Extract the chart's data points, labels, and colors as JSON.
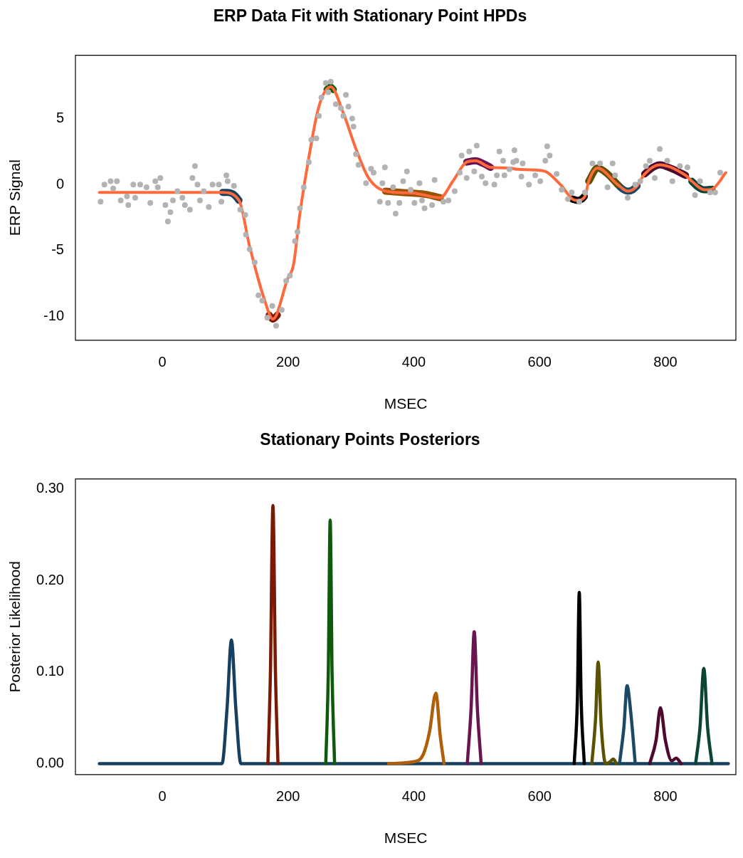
{
  "chart_data": [
    {
      "type": "line",
      "title": "ERP Data Fit with Stationary Point HPDs",
      "xlabel": "MSEC",
      "ylabel": "ERP Signal",
      "xlim": [
        -138,
        912
      ],
      "ylim": [
        -11.8,
        9.8
      ],
      "xticks": [
        0,
        200,
        400,
        600,
        800
      ],
      "yticks": [
        -10,
        -5,
        0,
        5
      ],
      "series": [
        {
          "type": "scatter",
          "marker": "circle",
          "color": "#b3b3b3",
          "x": [
            -98,
            -92,
            -82,
            -72,
            -78,
            -66,
            -56,
            -54,
            -46,
            -43,
            -35,
            -25,
            -19,
            -11,
            -3,
            -7,
            5,
            9,
            13,
            17,
            24,
            32,
            36,
            44,
            48,
            52,
            56,
            60,
            66,
            74,
            80,
            90,
            94,
            102,
            104,
            114,
            124,
            132,
            133,
            139,
            147,
            153,
            159,
            175,
            167,
            181,
            190,
            197,
            203,
            211,
            215,
            219,
            225,
            233,
            237,
            245,
            249,
            253,
            260,
            268,
            264,
            276,
            284,
            292,
            296,
            288,
            302,
            304,
            308,
            312,
            324,
            332,
            336,
            346,
            350,
            354,
            359,
            367,
            371,
            377,
            383,
            389,
            395,
            401,
            409,
            413,
            417,
            429,
            433,
            447,
            455,
            465,
            473,
            476,
            488,
            500,
            484,
            496,
            508,
            514,
            528,
            532,
            536,
            542,
            544,
            552,
            560,
            558,
            563,
            573,
            571,
            583,
            593,
            601,
            609,
            612,
            616,
            627,
            635,
            645,
            651,
            663,
            672,
            684,
            696,
            708,
            716,
            720,
            740,
            752,
            760,
            769,
            775,
            783,
            791,
            803,
            811,
            823,
            835,
            847,
            855,
            871,
            879,
            887
          ],
          "values": [
            -1.3,
            0.0,
            0.25,
            0.25,
            -0.3,
            -1.2,
            -0.9,
            -1.55,
            0.0,
            -1.0,
            0.0,
            -0.2,
            -1.4,
            0.25,
            0.5,
            -0.2,
            -1.55,
            -2.8,
            -2.1,
            -1.2,
            -0.5,
            -1.0,
            -1.55,
            -1.9,
            0.5,
            1.4,
            0.0,
            -1.2,
            -0.5,
            -1.7,
            0.0,
            0.0,
            -1.3,
            0.7,
            0.25,
            -0.1,
            -1.9,
            -2.3,
            -3.8,
            -4.9,
            -5.9,
            -8.4,
            -8.8,
            -9.2,
            -10.1,
            -10.7,
            -9.5,
            -7.3,
            -6.9,
            -4.3,
            -3.6,
            -1.8,
            -0.2,
            1.7,
            3.4,
            3.5,
            5.2,
            6.6,
            7.7,
            7.8,
            7.0,
            6.1,
            5.8,
            6.8,
            5.9,
            5.2,
            5.0,
            4.4,
            2.3,
            1.5,
            0.1,
            1.2,
            0.9,
            -1.3,
            0.1,
            1.3,
            -1.4,
            -0.2,
            -2.2,
            -1.4,
            0.25,
            1.0,
            -0.4,
            -1.4,
            0.1,
            -1.2,
            -1.8,
            -1.55,
            0.35,
            -1.3,
            -1.2,
            -0.5,
            0.9,
            2.2,
            2.5,
            2.95,
            0.5,
            1.0,
            0.6,
            0.1,
            0.0,
            0.7,
            2.5,
            1.8,
            0.7,
            1.15,
            2.6,
            1.7,
            1.8,
            1.6,
            0.6,
            0.0,
            0.7,
            0.25,
            1.8,
            2.9,
            2.2,
            0.8,
            -0.4,
            -1.1,
            -0.6,
            -1.3,
            -0.6,
            1.6,
            1.6,
            -0.2,
            1.6,
            0.7,
            -1.0,
            0.0,
            0.25,
            1.4,
            1.8,
            0.5,
            2.7,
            1.8,
            0.25,
            1.4,
            1.3,
            -0.8,
            0.25,
            -0.6,
            -0.6,
            0.9
          ]
        },
        {
          "color": "#ff6a3d",
          "x": [
            -100,
            96,
            122,
            139,
            163,
            176,
            199,
            209,
            218,
            229,
            249,
            268,
            288,
            308,
            328,
            355,
            399,
            442,
            462,
            484,
            498,
            522,
            553,
            565,
            605,
            633,
            652,
            660,
            672,
            678,
            692,
            724,
            740,
            755,
            767,
            791,
            832,
            842,
            862,
            874,
            896
          ],
          "values": [
            -0.6,
            -0.6,
            -1.2,
            -4.7,
            -8.8,
            -10.2,
            -7.2,
            -6.0,
            -2.5,
            0.9,
            5.9,
            7.4,
            5.4,
            2.7,
            0.5,
            -0.5,
            -0.65,
            -1.0,
            0.25,
            1.7,
            1.8,
            1.3,
            1.25,
            1.15,
            1.05,
            0.0,
            -1.1,
            -1.2,
            -0.9,
            0.25,
            1.25,
            0.0,
            -0.5,
            -0.1,
            0.8,
            1.5,
            0.7,
            0.25,
            -0.4,
            -0.35,
            0.9
          ]
        },
        {
          "color": "#173f5f",
          "x": [
            96,
            104,
            112,
            118,
            122
          ],
          "values": [
            -0.6,
            -0.6,
            -0.7,
            -0.95,
            -1.2
          ]
        },
        {
          "color": "#7a1a05",
          "x": [
            170,
            176,
            183
          ],
          "values": [
            -9.9,
            -10.2,
            -9.9
          ]
        },
        {
          "color": "#0f5a0a",
          "x": [
            262,
            267,
            272
          ],
          "values": [
            7.2,
            7.4,
            7.2
          ]
        },
        {
          "color": "#9a5200",
          "x": [
            355,
            380,
            399,
            420,
            442
          ],
          "values": [
            -0.5,
            -0.6,
            -0.65,
            -0.75,
            -1.0
          ]
        },
        {
          "color": "#6a1450",
          "x": [
            484,
            498,
            510,
            522
          ],
          "values": [
            1.7,
            1.8,
            1.6,
            1.3
          ]
        },
        {
          "color": "#000000",
          "x": [
            652,
            660,
            667,
            671
          ],
          "values": [
            -1.1,
            -1.2,
            -1.1,
            -0.9
          ]
        },
        {
          "color": "#5a5200",
          "x": [
            678,
            692,
            708,
            724
          ],
          "values": [
            0.25,
            1.25,
            0.8,
            0.0
          ]
        },
        {
          "color": "#1c4a66",
          "x": [
            724,
            732,
            740,
            748,
            755
          ],
          "values": [
            0.0,
            -0.35,
            -0.5,
            -0.4,
            -0.1
          ]
        },
        {
          "color": "#4e0a2e",
          "x": [
            767,
            780,
            791,
            810,
            832
          ],
          "values": [
            0.8,
            1.3,
            1.5,
            1.2,
            0.7
          ]
        },
        {
          "color": "#0b4535",
          "x": [
            842,
            852,
            862,
            874
          ],
          "values": [
            0.25,
            -0.2,
            -0.4,
            -0.35
          ]
        }
      ]
    },
    {
      "type": "line",
      "title": "Stationary Points Posteriors",
      "xlabel": "MSEC",
      "ylabel": "Posterior Likelihood",
      "xlim": [
        -138,
        912
      ],
      "ylim": [
        -0.012,
        0.311
      ],
      "xticks": [
        0,
        200,
        400,
        600,
        800
      ],
      "yticks": [
        {
          "value": 0,
          "label": "0.00"
        },
        {
          "value": 0.1,
          "label": "0.10"
        },
        {
          "value": 0.2,
          "label": "0.20"
        },
        {
          "value": 0.3,
          "label": "0.30"
        }
      ],
      "series": [
        {
          "color": "#7a1a05",
          "x": [
            168,
            172,
            176,
            180,
            184
          ],
          "values": [
            0,
            0.1,
            0.282,
            0.1,
            0
          ]
        },
        {
          "color": "#0f5a0a",
          "x": [
            260,
            264,
            267,
            270,
            274
          ],
          "values": [
            0,
            0.1,
            0.266,
            0.1,
            0
          ]
        },
        {
          "color": "#b05e0a",
          "x": [
            360,
            400,
            415,
            425,
            435,
            442,
            448
          ],
          "values": [
            0,
            0.002,
            0.01,
            0.035,
            0.077,
            0.03,
            0
          ]
        },
        {
          "color": "#6a1450",
          "x": [
            485,
            491,
            496,
            501,
            507
          ],
          "values": [
            0,
            0.06,
            0.144,
            0.06,
            0
          ]
        },
        {
          "color": "#000000",
          "x": [
            655,
            660,
            663,
            666,
            671
          ],
          "values": [
            0,
            0.07,
            0.187,
            0.07,
            0
          ]
        },
        {
          "color": "#5a5200",
          "x": [
            683,
            689,
            693,
            698,
            705,
            712,
            717,
            722
          ],
          "values": [
            0,
            0.05,
            0.111,
            0.04,
            0,
            0.002,
            0.005,
            0
          ]
        },
        {
          "color": "#1c4a66",
          "x": [
            727,
            734,
            739,
            745,
            752
          ],
          "values": [
            0,
            0.04,
            0.085,
            0.055,
            0
          ]
        },
        {
          "color": "#4e0a2e",
          "x": [
            775,
            785,
            792,
            800,
            810,
            817,
            825
          ],
          "values": [
            0,
            0.025,
            0.061,
            0.025,
            0.003,
            0.006,
            0
          ]
        },
        {
          "color": "#0b4535",
          "x": [
            848,
            855,
            861,
            867,
            874
          ],
          "values": [
            0,
            0.04,
            0.104,
            0.04,
            0
          ]
        },
        {
          "color": "#173f5f",
          "x": [
            -100,
            95,
            103,
            110,
            117,
            125,
            900
          ],
          "values": [
            0,
            0,
            0.06,
            0.135,
            0.06,
            0,
            0
          ]
        }
      ]
    }
  ]
}
